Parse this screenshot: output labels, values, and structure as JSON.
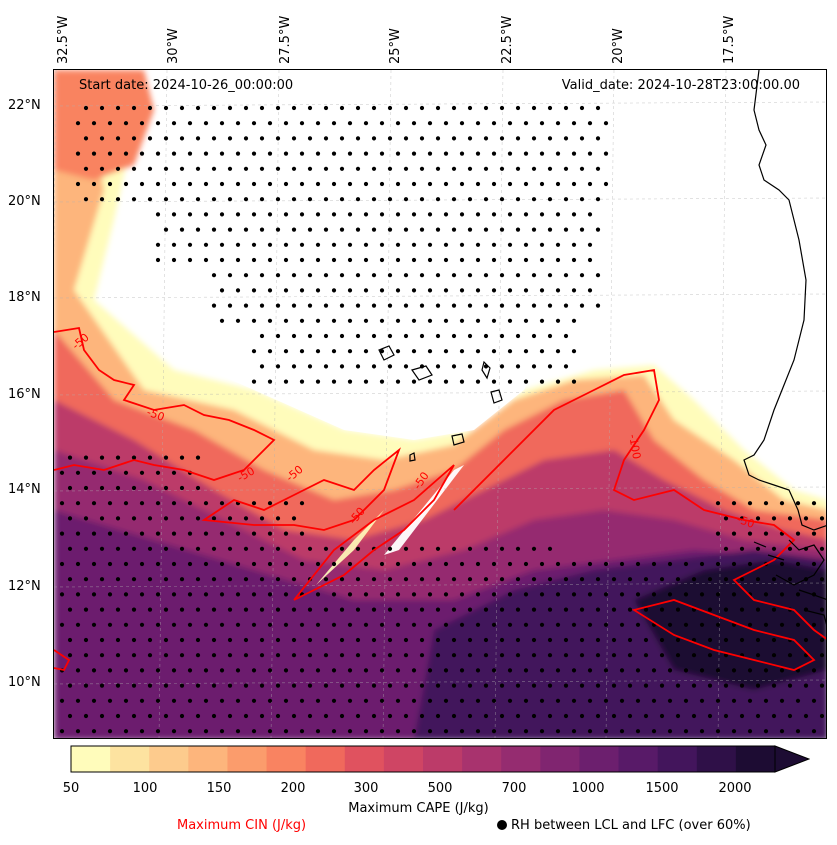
{
  "map": {
    "start_date": "Start date: 2024-10-26_00:00:00",
    "valid_date": "Valid_date: 2024-10-28T23:00:00.00",
    "lon_labels": [
      "32.5°W",
      "30°W",
      "27.5°W",
      "25°W",
      "22.5°W",
      "20°W",
      "17.5°W"
    ],
    "lat_labels": [
      "22°N",
      "20°N",
      "18°N",
      "16°N",
      "14°N",
      "12°N",
      "10°N"
    ],
    "cin_contour_labels": [
      "-50",
      "-50",
      "-50",
      "-50",
      "-50",
      "-50",
      "-100",
      "-50"
    ],
    "colors": {
      "cin_contour": "#ff0000",
      "coastline": "#000000",
      "rh_dots": "#000000"
    }
  },
  "colorbar": {
    "label": "Maximum CAPE (J/kg)",
    "levels": [
      "50",
      "100",
      "150",
      "200",
      "300",
      "500",
      "700",
      "1000",
      "1500",
      "2000"
    ],
    "colors": [
      "#fffcbb",
      "#fde3a0",
      "#fdcb8d",
      "#fdb57c",
      "#fb9c6c",
      "#f98361",
      "#f0695c",
      "#e0525f",
      "#cf4564",
      "#bc3b69",
      "#a8336e",
      "#952c70",
      "#802570",
      "#6c1f6e",
      "#581a68",
      "#43155c",
      "#2f1048",
      "#1d0c33"
    ],
    "extend": "max"
  },
  "legend": {
    "cin": "Maximum CIN (J/kg)",
    "rh": "RH between LCL and LFC (over 60%)"
  }
}
